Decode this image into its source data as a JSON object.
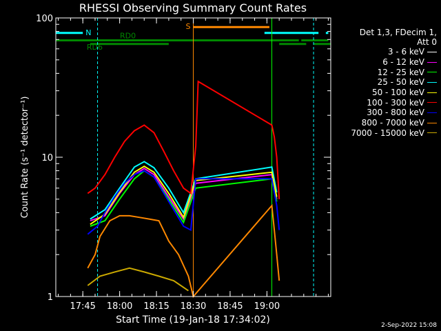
{
  "chart_data": {
    "type": "line",
    "title": "RHESSI Observing Summary Count Rates",
    "xlabel": "Start Time (19-Jan-18 17:34:02)",
    "ylabel": "Count Rate (s⁻¹ detector⁻¹)",
    "x_unit": "minutes after 17:34:02",
    "xlim": [
      0,
      112
    ],
    "ylim": [
      1,
      100
    ],
    "yscale": "log",
    "x_ticks": [
      {
        "t": 11,
        "label": "17:45"
      },
      {
        "t": 26,
        "label": "18:00"
      },
      {
        "t": 41,
        "label": "18:15"
      },
      {
        "t": 56,
        "label": "18:30"
      },
      {
        "t": 71,
        "label": "18:45"
      },
      {
        "t": 86,
        "label": "19:00"
      }
    ],
    "y_ticks": [
      {
        "v": 1,
        "label": "1"
      },
      {
        "v": 10,
        "label": "10"
      },
      {
        "v": 100,
        "label": "100"
      }
    ],
    "series": [
      {
        "name": "3 - 6 keV",
        "color": "#ffffff",
        "points": []
      },
      {
        "name": "6 - 12 keV",
        "color": "#ff00ff",
        "points": [
          [
            14,
            3.5
          ],
          [
            20,
            3.8
          ],
          [
            26,
            5.5
          ],
          [
            32,
            7.5
          ],
          [
            36,
            8.3
          ],
          [
            40,
            7.5
          ],
          [
            46,
            5.2
          ],
          [
            52,
            3.6
          ],
          [
            57,
            6.5
          ],
          [
            88,
            7.5
          ],
          [
            90,
            5
          ]
        ]
      },
      {
        "name": "12 - 25 keV",
        "color": "#00ff00",
        "points": [
          [
            14,
            3.2
          ],
          [
            20,
            3.5
          ],
          [
            26,
            5
          ],
          [
            32,
            7
          ],
          [
            36,
            8
          ],
          [
            40,
            7.2
          ],
          [
            46,
            5
          ],
          [
            52,
            3.4
          ],
          [
            57,
            6
          ],
          [
            88,
            7
          ],
          [
            90,
            4.8
          ]
        ]
      },
      {
        "name": "25 - 50 keV",
        "color": "#00ffff",
        "points": [
          [
            14,
            3.6
          ],
          [
            20,
            4.2
          ],
          [
            26,
            6
          ],
          [
            32,
            8.5
          ],
          [
            36,
            9.3
          ],
          [
            40,
            8.4
          ],
          [
            46,
            6
          ],
          [
            52,
            4
          ],
          [
            57,
            7
          ],
          [
            88,
            8.5
          ],
          [
            90,
            5.6
          ]
        ]
      },
      {
        "name": "50 - 100 keV",
        "color": "#ffff00",
        "points": [
          [
            14,
            3.3
          ],
          [
            20,
            3.9
          ],
          [
            26,
            5.6
          ],
          [
            32,
            7.8
          ],
          [
            36,
            8.6
          ],
          [
            40,
            7.8
          ],
          [
            46,
            5.5
          ],
          [
            52,
            3.7
          ],
          [
            57,
            6.8
          ],
          [
            88,
            7.8
          ],
          [
            90,
            5.2
          ]
        ]
      },
      {
        "name": "100 - 300 keV",
        "color": "#ff0000",
        "points": [
          [
            13,
            5.5
          ],
          [
            16,
            6
          ],
          [
            20,
            7.5
          ],
          [
            24,
            10
          ],
          [
            28,
            13
          ],
          [
            32,
            15.5
          ],
          [
            36,
            17
          ],
          [
            40,
            15
          ],
          [
            44,
            11
          ],
          [
            48,
            8
          ],
          [
            52,
            6
          ],
          [
            55,
            5.5
          ],
          [
            57,
            12
          ],
          [
            58,
            35
          ],
          [
            88,
            17
          ],
          [
            89,
            14
          ],
          [
            90,
            10
          ],
          [
            91,
            5
          ]
        ]
      },
      {
        "name": "300 - 800 keV",
        "color": "#0000ff",
        "points": [
          [
            13,
            2.8
          ],
          [
            17,
            3.2
          ],
          [
            20,
            4
          ],
          [
            24,
            5.2
          ],
          [
            28,
            6.5
          ],
          [
            32,
            7.5
          ],
          [
            36,
            8
          ],
          [
            40,
            7.2
          ],
          [
            44,
            5.5
          ],
          [
            48,
            4.2
          ],
          [
            52,
            3.2
          ],
          [
            55,
            3
          ],
          [
            57,
            7
          ],
          [
            88,
            7
          ],
          [
            90,
            4.5
          ],
          [
            91,
            3
          ]
        ]
      },
      {
        "name": "800 - 7000 keV",
        "color": "#ff8800",
        "points": [
          [
            13,
            1.6
          ],
          [
            16,
            2
          ],
          [
            18,
            2.7
          ],
          [
            22,
            3.5
          ],
          [
            26,
            3.8
          ],
          [
            30,
            3.8
          ],
          [
            34,
            3.7
          ],
          [
            38,
            3.6
          ],
          [
            42,
            3.5
          ],
          [
            46,
            2.5
          ],
          [
            50,
            2
          ],
          [
            54,
            1.4
          ],
          [
            56,
            1
          ],
          [
            88,
            4.5
          ],
          [
            89,
            3
          ],
          [
            90,
            2
          ],
          [
            91,
            1.3
          ]
        ]
      },
      {
        "name": "7000 - 15000 keV",
        "color": "#ccaa00",
        "points": [
          [
            13,
            1.2
          ],
          [
            18,
            1.4
          ],
          [
            24,
            1.5
          ],
          [
            30,
            1.6
          ],
          [
            36,
            1.5
          ],
          [
            42,
            1.4
          ],
          [
            48,
            1.3
          ],
          [
            54,
            1.1
          ]
        ]
      }
    ],
    "flags": [
      {
        "label": "N",
        "color": "#00ffff",
        "y": 78,
        "segments": [
          [
            0,
            11
          ],
          [
            85,
            107
          ],
          [
            110,
            111
          ]
        ]
      },
      {
        "label": "RD0",
        "color": "#008800",
        "y": 69,
        "segments": [
          [
            0,
            99
          ],
          [
            100,
            111
          ]
        ]
      },
      {
        "label": "RD6",
        "color": "#008800",
        "y": 65,
        "segments": [
          [
            14,
            46
          ],
          [
            91,
            102
          ],
          [
            105,
            112
          ]
        ]
      },
      {
        "label": "S",
        "color": "#ff8800",
        "y": 86,
        "segments": [
          [
            56,
            87
          ]
        ]
      }
    ],
    "vlines": [
      {
        "t": 0,
        "color": "#00ffff",
        "style": "dashed"
      },
      {
        "t": 17,
        "color": "#00ffff",
        "style": "dashed"
      },
      {
        "t": 56,
        "color": "#ff8800",
        "style": "solid"
      },
      {
        "t": 88,
        "color": "#00ff00",
        "style": "solid"
      },
      {
        "t": 105,
        "color": "#00ffff",
        "style": "dashed"
      }
    ]
  },
  "legend": {
    "header_line1": "Det 1,3, FDecim 1,",
    "header_line2": "Att 0"
  },
  "stamp": "2-Sep-2022 15:08"
}
